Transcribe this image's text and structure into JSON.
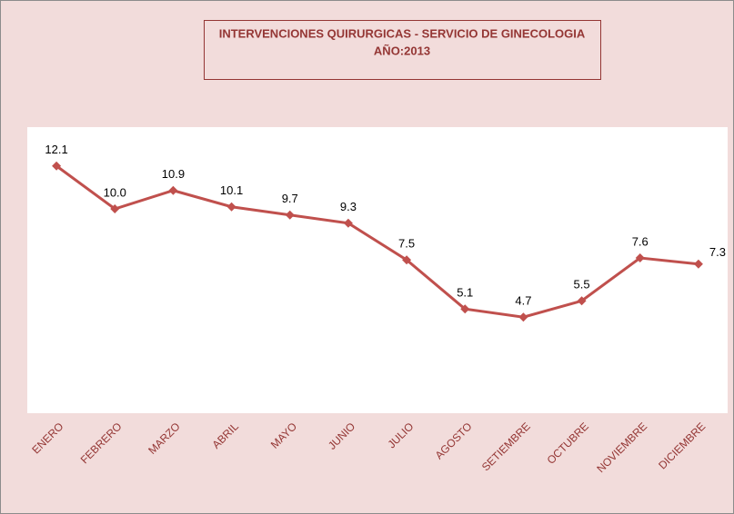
{
  "chart_data": {
    "type": "line",
    "title": "INTERVENCIONES QUIRURGICAS - SERVICIO DE GINECOLOGIA",
    "subtitle": "AÑO:2013",
    "categories": [
      "ENERO",
      "FEBRERO",
      "MARZO",
      "ABRIL",
      "MAYO",
      "JUNIO",
      "JULIO",
      "AGOSTO",
      "SETIEMBRE",
      "OCTUBRE",
      "NOVIEMBRE",
      "DICIEMBRE"
    ],
    "values": [
      12.1,
      10,
      10.9,
      10.1,
      9.7,
      9.3,
      7.5,
      5.1,
      4.7,
      5.5,
      7.6,
      7.3
    ],
    "value_labels": [
      "12.1",
      "10.0",
      "10.9",
      "10.1",
      "9.7",
      "9.3",
      "7.5",
      "5.1",
      "4.7",
      "5.5",
      "7.6",
      "7.3"
    ],
    "color": "#c0504d",
    "ylim": [
      0,
      14
    ]
  }
}
